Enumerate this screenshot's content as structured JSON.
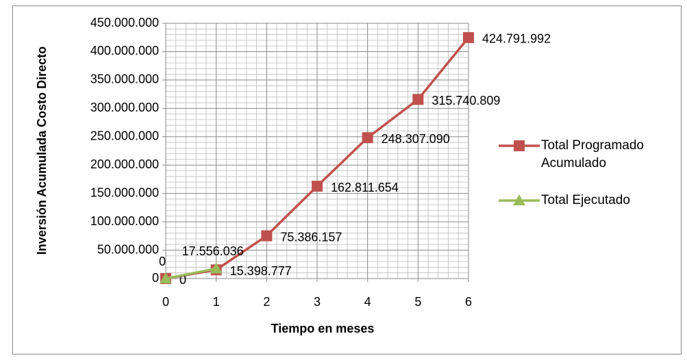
{
  "chart_data": {
    "type": "line",
    "x_label": "Tiempo en meses",
    "y_label": "Inversión Acumulada  Costo Directo",
    "series": [
      {
        "name": "Total Programado Acumulado",
        "color": "#c0504d",
        "marker": "square",
        "x": [
          0,
          1,
          2,
          3,
          4,
          5,
          6
        ],
        "values": [
          0,
          15398777,
          75386157,
          162811654,
          248307090,
          315740809,
          424791992
        ],
        "value_labels": [
          "0",
          "15.398.777",
          "75.386.157",
          "162.811.654",
          "248.307.090",
          "315.740.809",
          "424.791.992"
        ]
      },
      {
        "name": "Total Ejecutado",
        "color": "#9bbb59",
        "marker": "triangle",
        "x": [
          0,
          1
        ],
        "values": [
          0,
          17556036
        ],
        "value_labels": [
          "0",
          "17.556.036"
        ]
      }
    ],
    "xlim": [
      0,
      6
    ],
    "xticks": [
      0,
      1,
      2,
      3,
      4,
      5,
      6
    ],
    "ylim": [
      0,
      450000000
    ],
    "yticks": [
      0,
      {
        "value": 50000000,
        "label": "50.000.000"
      },
      {
        "value": 100000000,
        "label": "100.000.000"
      },
      {
        "value": 150000000,
        "label": "150.000.000"
      },
      {
        "value": 200000000,
        "label": "200.000.000"
      },
      {
        "value": 250000000,
        "label": "250.000.000"
      },
      {
        "value": 300000000,
        "label": "300.000.000"
      },
      {
        "value": 350000000,
        "label": "350.000.000"
      },
      {
        "value": 400000000,
        "label": "400.000.000"
      },
      {
        "value": 450000000,
        "label": "450.000.000"
      }
    ],
    "grid": true,
    "minor_grid": true,
    "legend": "right"
  }
}
